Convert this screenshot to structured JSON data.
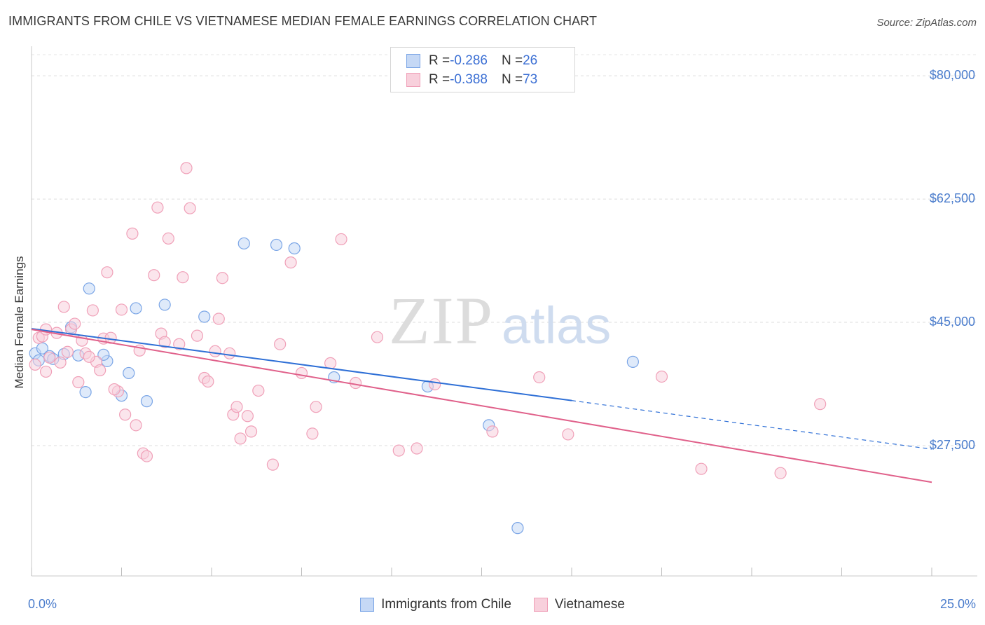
{
  "title": "IMMIGRANTS FROM CHILE VS VIETNAMESE MEDIAN FEMALE EARNINGS CORRELATION CHART",
  "source": "Source: ZipAtlas.com",
  "watermark": {
    "zip": "ZIP",
    "atlas": "atlas"
  },
  "legend": [
    {
      "r_label": "R = ",
      "r_value": "-0.286",
      "n_label": "N = ",
      "n_value": "26",
      "color": "#7aa5e6",
      "fill": "#c5d8f5"
    },
    {
      "r_label": "R = ",
      "r_value": "-0.388",
      "n_label": "N = ",
      "n_value": "73",
      "color": "#f0a0b8",
      "fill": "#f8d0dc"
    }
  ],
  "chart_data": {
    "type": "scatter",
    "title": "IMMIGRANTS FROM CHILE VS VIETNAMESE MEDIAN FEMALE EARNINGS CORRELATION CHART",
    "xlabel": "",
    "ylabel": "Median Female Earnings",
    "xlim": [
      0,
      25
    ],
    "ylim": [
      9000,
      83000
    ],
    "x_tick_labels": [
      "0.0%",
      "25.0%"
    ],
    "y_ticks": [
      27500,
      45000,
      62500,
      80000
    ],
    "y_tick_labels": [
      "$27,500",
      "$45,000",
      "$62,500",
      "$80,000"
    ],
    "grid": true,
    "legend_position": "top-center",
    "series": [
      {
        "name": "Immigrants from Chile",
        "color": "#7aa5e6",
        "fill": "#c5d8f5",
        "trend_color": "#2e6fd6",
        "trend": {
          "x_start": 0.0,
          "y_start": 44100,
          "x_solid_end": 15.0,
          "y_solid_end": 33900,
          "x_end": 25.0,
          "y_end": 27000
        },
        "points": [
          [
            0.1,
            40600
          ],
          [
            0.3,
            41300
          ],
          [
            0.5,
            40200
          ],
          [
            0.6,
            39800
          ],
          [
            0.9,
            40500
          ],
          [
            1.1,
            44300
          ],
          [
            1.3,
            40300
          ],
          [
            1.6,
            49800
          ],
          [
            1.5,
            35100
          ],
          [
            2.1,
            39500
          ],
          [
            2.0,
            40400
          ],
          [
            2.5,
            34600
          ],
          [
            2.7,
            37800
          ],
          [
            2.9,
            47000
          ],
          [
            3.2,
            33800
          ],
          [
            3.7,
            47500
          ],
          [
            4.8,
            45800
          ],
          [
            5.9,
            56200
          ],
          [
            6.8,
            56000
          ],
          [
            7.3,
            55500
          ],
          [
            8.4,
            37200
          ],
          [
            11.0,
            35900
          ],
          [
            12.7,
            30400
          ],
          [
            13.5,
            15800
          ],
          [
            16.7,
            39400
          ],
          [
            0.2,
            39600
          ]
        ]
      },
      {
        "name": "Vietnamese",
        "color": "#f0a0b8",
        "fill": "#f8d0dc",
        "trend_color": "#e0608a",
        "trend": {
          "x_start": 0.0,
          "y_start": 44000,
          "x_end": 25.0,
          "y_end": 22300
        },
        "points": [
          [
            0.1,
            39000
          ],
          [
            0.2,
            42800
          ],
          [
            0.3,
            43000
          ],
          [
            0.4,
            44000
          ],
          [
            0.5,
            40000
          ],
          [
            0.7,
            43500
          ],
          [
            0.8,
            39300
          ],
          [
            0.9,
            47200
          ],
          [
            1.0,
            40800
          ],
          [
            1.1,
            44000
          ],
          [
            1.2,
            44800
          ],
          [
            1.3,
            36500
          ],
          [
            1.4,
            42400
          ],
          [
            1.5,
            40600
          ],
          [
            1.7,
            46700
          ],
          [
            1.8,
            39400
          ],
          [
            1.9,
            38200
          ],
          [
            2.0,
            42700
          ],
          [
            2.1,
            52100
          ],
          [
            2.2,
            42800
          ],
          [
            2.4,
            35200
          ],
          [
            2.5,
            46800
          ],
          [
            2.6,
            31900
          ],
          [
            2.8,
            57600
          ],
          [
            2.9,
            30400
          ],
          [
            3.0,
            41000
          ],
          [
            3.1,
            26400
          ],
          [
            3.2,
            26000
          ],
          [
            3.4,
            51700
          ],
          [
            3.5,
            61300
          ],
          [
            3.6,
            43400
          ],
          [
            3.7,
            42200
          ],
          [
            3.8,
            56900
          ],
          [
            4.1,
            41900
          ],
          [
            4.2,
            51400
          ],
          [
            4.3,
            66900
          ],
          [
            4.4,
            61200
          ],
          [
            4.6,
            43100
          ],
          [
            4.8,
            37100
          ],
          [
            4.9,
            36600
          ],
          [
            5.1,
            40900
          ],
          [
            5.2,
            45500
          ],
          [
            5.3,
            51300
          ],
          [
            5.5,
            40600
          ],
          [
            5.6,
            31900
          ],
          [
            5.7,
            33000
          ],
          [
            5.8,
            28500
          ],
          [
            6.0,
            31700
          ],
          [
            6.1,
            29500
          ],
          [
            6.3,
            35300
          ],
          [
            6.7,
            24800
          ],
          [
            6.9,
            41900
          ],
          [
            7.2,
            53500
          ],
          [
            7.5,
            37800
          ],
          [
            7.8,
            29200
          ],
          [
            7.9,
            33000
          ],
          [
            8.3,
            39200
          ],
          [
            8.6,
            56800
          ],
          [
            9.0,
            36400
          ],
          [
            9.6,
            42900
          ],
          [
            10.2,
            26800
          ],
          [
            10.7,
            27100
          ],
          [
            11.2,
            36200
          ],
          [
            12.8,
            29500
          ],
          [
            14.1,
            37200
          ],
          [
            14.9,
            29100
          ],
          [
            17.5,
            37300
          ],
          [
            18.6,
            24200
          ],
          [
            20.8,
            23600
          ],
          [
            21.9,
            33400
          ],
          [
            0.4,
            38000
          ],
          [
            1.6,
            40100
          ],
          [
            2.3,
            35500
          ]
        ]
      }
    ]
  }
}
